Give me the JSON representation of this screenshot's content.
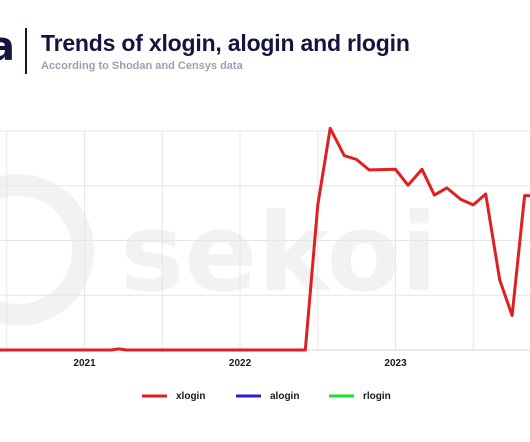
{
  "header": {
    "logo": "a",
    "title": "Trends of xlogin, alogin and rlogin",
    "subtitle": "According to Shodan and Censys data"
  },
  "watermark": "sekoi",
  "colors": {
    "xlogin": "#e02020",
    "alogin": "#2a1fd6",
    "rlogin": "#22dd33",
    "grid": "#e6e6e6",
    "title": "#14153f"
  },
  "chart_data": {
    "type": "line",
    "title": "Trends of xlogin, alogin and rlogin",
    "subtitle": "According to Shodan and Censys data",
    "xlabel": "",
    "ylabel": "",
    "x_ticks": [
      "2021",
      "2022",
      "2023"
    ],
    "grid": true,
    "legend_position": "bottom",
    "series": [
      {
        "name": "xlogin",
        "points": [
          [
            2020.45,
            0
          ],
          [
            2021.0,
            0
          ],
          [
            2021.17,
            0
          ],
          [
            2021.22,
            0.02
          ],
          [
            2021.27,
            0
          ],
          [
            2021.5,
            0
          ],
          [
            2022.0,
            0
          ],
          [
            2022.42,
            0
          ],
          [
            2022.5,
            2.65
          ],
          [
            2022.58,
            4.05
          ],
          [
            2022.67,
            3.55
          ],
          [
            2022.75,
            3.48
          ],
          [
            2022.83,
            3.29
          ],
          [
            2023.0,
            3.3
          ],
          [
            2023.08,
            3.01
          ],
          [
            2023.17,
            3.3
          ],
          [
            2023.25,
            2.83
          ],
          [
            2023.33,
            2.96
          ],
          [
            2023.42,
            2.75
          ],
          [
            2023.5,
            2.65
          ],
          [
            2023.58,
            2.85
          ],
          [
            2023.67,
            1.28
          ],
          [
            2023.75,
            0.63
          ],
          [
            2023.83,
            2.82
          ],
          [
            2023.92,
            2.82
          ]
        ]
      },
      {
        "name": "alogin",
        "points": []
      },
      {
        "name": "rlogin",
        "points": []
      }
    ]
  }
}
